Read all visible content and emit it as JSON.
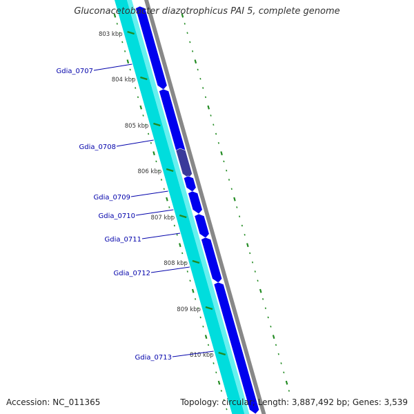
{
  "title": "Gluconacetobacter diazotrophicus PAI 5, complete genome",
  "footer": {
    "accession": "Accession: NC_011365",
    "summary": "Topology: circular; Length: 3,887,492 bp; Genes: 3,539"
  },
  "colors": {
    "cds": "#0000ee",
    "cds_dark": "#3a3a9a",
    "gene_backbone": "#00dddd",
    "backbone": "#888888",
    "tick": "#228b22",
    "label": "#0000aa",
    "tick_label": "#333333"
  },
  "ticks": [
    {
      "label": "803 kbp"
    },
    {
      "label": "804 kbp"
    },
    {
      "label": "805 kbp"
    },
    {
      "label": "806 kbp"
    },
    {
      "label": "807 kbp"
    },
    {
      "label": "808 kbp"
    },
    {
      "label": "809 kbp"
    },
    {
      "label": "810 kbp"
    }
  ],
  "genes": [
    {
      "label": "Gdia_0707"
    },
    {
      "label": "Gdia_0708"
    },
    {
      "label": "Gdia_0709"
    },
    {
      "label": "Gdia_0710"
    },
    {
      "label": "Gdia_0711"
    },
    {
      "label": "Gdia_0712"
    },
    {
      "label": "Gdia_0713"
    }
  ]
}
